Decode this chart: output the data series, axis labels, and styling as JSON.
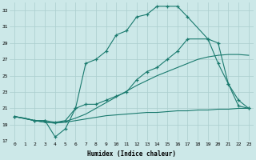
{
  "xlabel": "Humidex (Indice chaleur)",
  "bg_color": "#cce8e8",
  "line_color": "#1a7a6e",
  "grid_color": "#aacece",
  "xlim": [
    -0.5,
    23.5
  ],
  "ylim": [
    17,
    34
  ],
  "yticks": [
    17,
    19,
    21,
    23,
    25,
    27,
    29,
    31,
    33
  ],
  "xticks": [
    0,
    1,
    2,
    3,
    4,
    5,
    6,
    7,
    8,
    9,
    10,
    11,
    12,
    13,
    14,
    15,
    16,
    17,
    18,
    19,
    20,
    21,
    22,
    23
  ],
  "series": [
    {
      "x": [
        0,
        1,
        2,
        3,
        4,
        5,
        6,
        7,
        8,
        9,
        10,
        11,
        12,
        13,
        14,
        15,
        16,
        17,
        18,
        19,
        20,
        21,
        22,
        23
      ],
      "y": [
        20.0,
        19.8,
        19.5,
        19.3,
        19.2,
        19.3,
        19.5,
        19.7,
        19.9,
        20.1,
        20.2,
        20.3,
        20.4,
        20.5,
        20.5,
        20.6,
        20.7,
        20.7,
        20.8,
        20.8,
        20.9,
        20.9,
        21.0,
        21.0
      ],
      "marker": false
    },
    {
      "x": [
        0,
        1,
        2,
        3,
        4,
        5,
        6,
        7,
        8,
        9,
        10,
        11,
        12,
        13,
        14,
        15,
        16,
        17,
        18,
        19,
        20,
        21,
        22,
        23
      ],
      "y": [
        20.0,
        19.8,
        19.5,
        19.3,
        19.2,
        19.4,
        19.8,
        20.3,
        21.0,
        21.7,
        22.4,
        23.1,
        23.8,
        24.4,
        25.0,
        25.5,
        26.0,
        26.5,
        27.0,
        27.3,
        27.5,
        27.6,
        27.6,
        27.5
      ],
      "marker": false
    },
    {
      "x": [
        0,
        2,
        3,
        4,
        5,
        6,
        7,
        8,
        9,
        10,
        11,
        12,
        13,
        14,
        15,
        16,
        17,
        19,
        20,
        21,
        22,
        23
      ],
      "y": [
        20.0,
        19.5,
        19.5,
        19.3,
        19.5,
        21.0,
        21.5,
        21.5,
        22.0,
        22.5,
        23.0,
        24.5,
        25.5,
        26.0,
        27.0,
        28.0,
        29.5,
        29.5,
        26.5,
        24.0,
        21.3,
        21.0
      ],
      "marker": true
    },
    {
      "x": [
        0,
        2,
        3,
        4,
        5,
        6,
        7,
        8,
        9,
        10,
        11,
        12,
        13,
        14,
        15,
        16,
        17,
        19,
        20,
        21,
        22,
        23
      ],
      "y": [
        20.0,
        19.5,
        19.5,
        17.5,
        18.5,
        21.0,
        26.5,
        27.0,
        28.0,
        30.0,
        30.5,
        32.2,
        32.5,
        33.5,
        33.5,
        33.5,
        32.2,
        29.5,
        29.0,
        24.0,
        22.0,
        21.0
      ],
      "marker": true
    }
  ]
}
